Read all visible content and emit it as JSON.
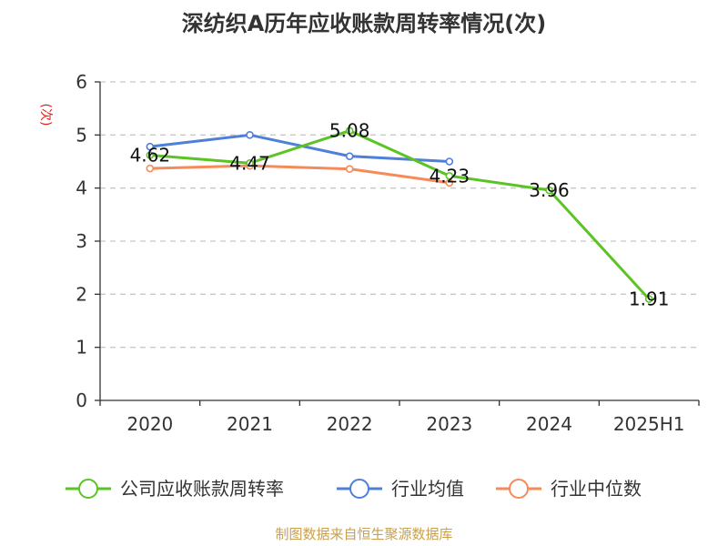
{
  "chart_data": {
    "type": "line",
    "title": "深纺织A历年应收账款周转率情况(次)",
    "ylabel": "(次)",
    "categories": [
      "2020",
      "2021",
      "2022",
      "2023",
      "2024",
      "2025H1"
    ],
    "ylim": [
      0,
      6
    ],
    "yticks": [
      0,
      1,
      2,
      3,
      4,
      5,
      6
    ],
    "grid": true,
    "legend_position": "bottom",
    "series": [
      {
        "name": "公司应收账款周转率",
        "color": "#5bc424",
        "values": [
          4.62,
          4.47,
          5.08,
          4.23,
          3.96,
          1.91
        ],
        "labels": [
          "4.62",
          "4.47",
          "5.08",
          "4.23",
          "3.96",
          "1.91"
        ],
        "show_labels": true
      },
      {
        "name": "行业均值",
        "color": "#4e7fd9",
        "values": [
          4.78,
          5.0,
          4.6,
          4.5,
          null,
          null
        ],
        "show_labels": false
      },
      {
        "name": "行业中位数",
        "color": "#f58a5a",
        "values": [
          4.37,
          4.42,
          4.36,
          4.1,
          null,
          null
        ],
        "show_labels": false
      }
    ]
  },
  "source": "制图数据来自恒生聚源数据库"
}
